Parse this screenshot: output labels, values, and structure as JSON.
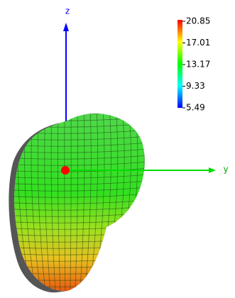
{
  "chart_data": {
    "type": "pattern3d",
    "z_label": "z",
    "y_label": "y",
    "colorbar": {
      "clim": [
        5.49,
        20.85
      ],
      "ticks": [
        20.85,
        17.01,
        13.17,
        9.33,
        5.49
      ]
    }
  }
}
